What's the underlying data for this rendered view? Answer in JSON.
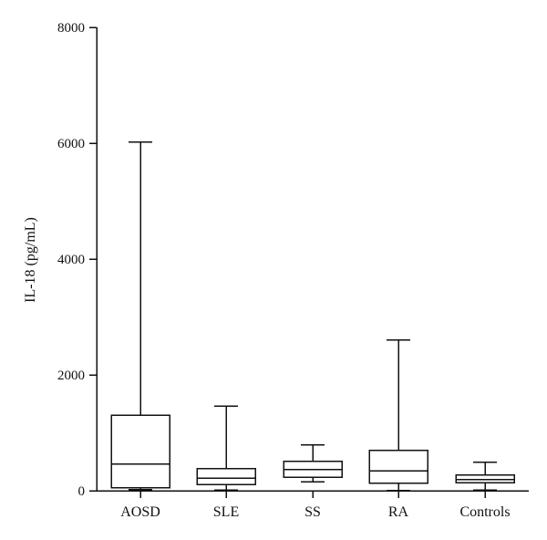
{
  "chart_data": {
    "type": "boxplot",
    "title": "",
    "xlabel": "",
    "ylabel": "IL-18 (pg/mL)",
    "ylim": [
      0,
      8000
    ],
    "yticks": [
      0,
      2000,
      4000,
      6000,
      8000
    ],
    "ytick_labels": [
      "0",
      "2000",
      "4000",
      "6000",
      "8000"
    ],
    "grid": false,
    "categories": [
      "AOSD",
      "SLE",
      "SS",
      "RA",
      "Controls"
    ],
    "boxes": [
      {
        "min": 20,
        "q1": 50,
        "median": 460,
        "q3": 1300,
        "max": 6020
      },
      {
        "min": 15,
        "q1": 110,
        "median": 220,
        "q3": 380,
        "max": 1460
      },
      {
        "min": 150,
        "q1": 230,
        "median": 370,
        "q3": 510,
        "max": 790
      },
      {
        "min": 5,
        "q1": 130,
        "median": 340,
        "q3": 700,
        "max": 2600
      },
      {
        "min": 10,
        "q1": 140,
        "median": 190,
        "q3": 270,
        "max": 490
      }
    ],
    "colors": {
      "line": "#111111",
      "box_fill": "#ffffff"
    }
  }
}
